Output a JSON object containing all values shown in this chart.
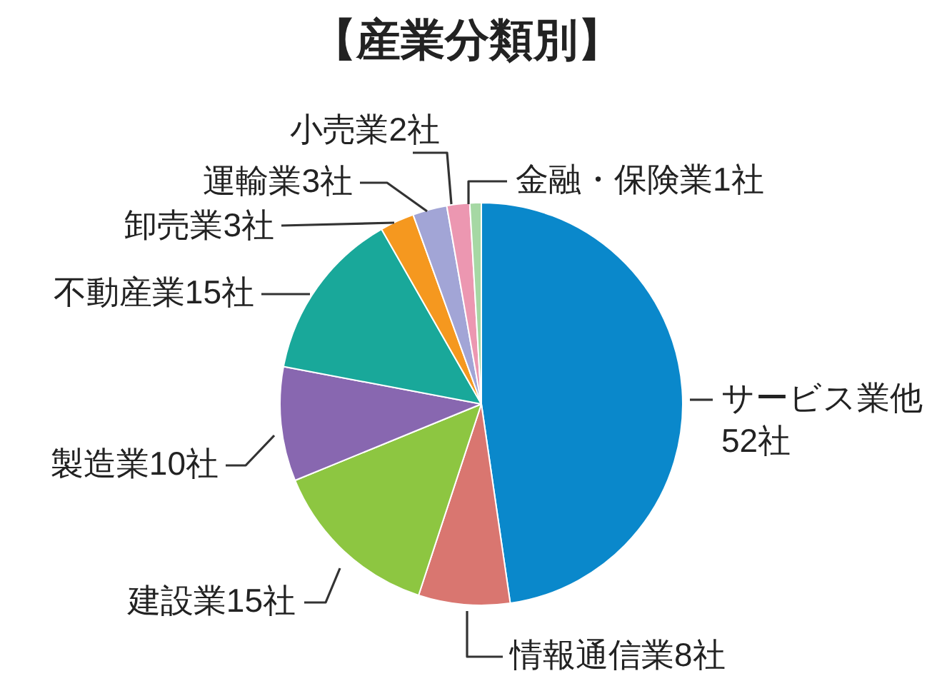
{
  "chart_data": {
    "type": "pie",
    "title": "【産業分類別】",
    "categories": [
      "サービス業他",
      "情報通信業",
      "建設業",
      "製造業",
      "不動産業",
      "卸売業",
      "運輸業",
      "小売業",
      "金融・保険業"
    ],
    "values": [
      52,
      8,
      15,
      10,
      15,
      3,
      3,
      2,
      1
    ],
    "value_labels": [
      "52社",
      "8社",
      "15社",
      "10社",
      "15社",
      "3社",
      "3社",
      "2社",
      "1社"
    ],
    "colors": [
      "#0a88cb",
      "#d97670",
      "#8dc641",
      "#8867b0",
      "#19a89a",
      "#f5981f",
      "#a2a5d6",
      "#ec97b1",
      "#a6d8a4"
    ]
  }
}
